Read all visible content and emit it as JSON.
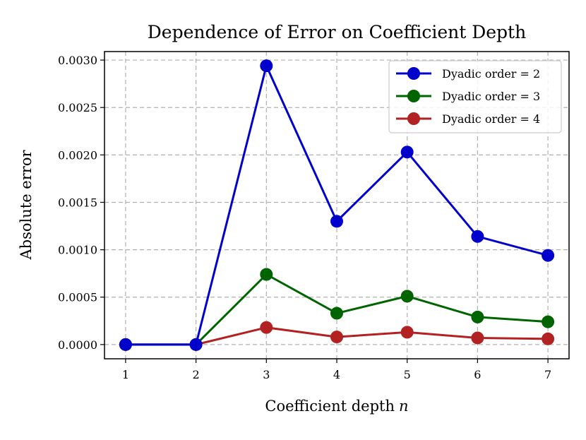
{
  "chart_data": {
    "type": "line",
    "title": "Dependence of Error on Coefficient Depth",
    "xlabel": "Coefficient depth",
    "xlabel_var": "n",
    "ylabel": "Absolute error",
    "x": [
      1,
      2,
      3,
      4,
      5,
      6,
      7
    ],
    "xticks": [
      "1",
      "2",
      "3",
      "4",
      "5",
      "6",
      "7"
    ],
    "yticks": [
      "0.0000",
      "0.0005",
      "0.0010",
      "0.0015",
      "0.0020",
      "0.0025",
      "0.0030"
    ],
    "ylim": [
      -0.00015,
      0.00309
    ],
    "xlim": [
      0.7,
      7.3
    ],
    "grid": true,
    "legend_position": "top-right",
    "series": [
      {
        "name": "Dyadic order = 2",
        "color": "#0000cc",
        "values": [
          0.0,
          0.0,
          0.00294,
          0.0013,
          0.00203,
          0.00114,
          0.00094
        ]
      },
      {
        "name": "Dyadic order = 3",
        "color": "#006400",
        "values": [
          0.0,
          0.0,
          0.00074,
          0.00033,
          0.00051,
          0.00029,
          0.00024
        ]
      },
      {
        "name": "Dyadic order = 4",
        "color": "#b22222",
        "values": [
          0.0,
          0.0,
          0.00018,
          8e-05,
          0.00013,
          7e-05,
          6e-05
        ]
      }
    ]
  }
}
